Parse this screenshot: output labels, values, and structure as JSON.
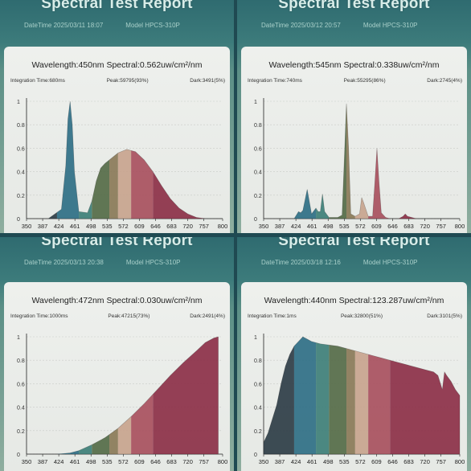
{
  "reports": [
    {
      "title": "Spectral Test Report",
      "datetime": "DateTime 2025/03/11 18:07",
      "model": "Model HPCS-310P",
      "wavelength_line": "Wavelength:450nm Spectral:0.562uw/cm²/nm",
      "integration": "Integration Time:680ms",
      "peak": "Peak:59795(93%)",
      "dark": "Dark:3491(5%)"
    },
    {
      "title": "Spectral Test Report",
      "datetime": "DateTime 2025/03/12 20:57",
      "model": "Model HPCS-310P",
      "wavelength_line": "Wavelength:545nm Spectral:0.338uw/cm²/nm",
      "integration": "Integration Time:740ms",
      "peak": "Peak:55295(86%)",
      "dark": "Dark:2745(4%)"
    },
    {
      "title": "Spectral Test Report",
      "datetime": "DateTime 2025/03/13 20:38",
      "model": "Model HPCS-310P",
      "wavelength_line": "Wavelength:472nm Spectral:0.030uw/cm²/nm",
      "integration": "Integration Time:1000ms",
      "peak": "Peak:47215(73%)",
      "dark": "Dark:2491(4%)"
    },
    {
      "title": "Spectral Test Report",
      "datetime": "DateTime 2025/03/18 12:16",
      "model": "Model HPCS-310P",
      "wavelength_line": "Wavelength:440nm Spectral:123.287uw/cm²/nm",
      "integration": "Integration Time:1ms",
      "peak": "Peak:32800(51%)",
      "dark": "Dark:3101(5%)"
    }
  ],
  "chart_data": [
    {
      "type": "area",
      "x": [
        350,
        400,
        430,
        440,
        445,
        450,
        455,
        460,
        470,
        490,
        500,
        510,
        520,
        530,
        540,
        560,
        580,
        600,
        620,
        640,
        660,
        680,
        700,
        720,
        740,
        760,
        780,
        800
      ],
      "values": [
        0,
        0,
        0.08,
        0.45,
        0.85,
        1.0,
        0.8,
        0.4,
        0.06,
        0.05,
        0.15,
        0.32,
        0.43,
        0.47,
        0.5,
        0.56,
        0.59,
        0.57,
        0.5,
        0.4,
        0.28,
        0.17,
        0.09,
        0.04,
        0.01,
        0,
        0,
        0
      ],
      "xticks": [
        350,
        387,
        424,
        461,
        498,
        535,
        572,
        609,
        646,
        683,
        720,
        757,
        800
      ],
      "yticks": [
        0,
        0.2,
        0.4,
        0.6,
        0.8,
        1
      ],
      "xlim": [
        350,
        800
      ],
      "ylim": [
        0,
        1
      ]
    },
    {
      "type": "area",
      "x": [
        350,
        420,
        425,
        430,
        435,
        440,
        450,
        460,
        470,
        475,
        480,
        485,
        490,
        500,
        520,
        530,
        535,
        540,
        545,
        550,
        560,
        570,
        575,
        580,
        590,
        600,
        605,
        610,
        615,
        620,
        630,
        640,
        660,
        670,
        675,
        680,
        700,
        800
      ],
      "values": [
        0,
        0,
        0.03,
        0.06,
        0.05,
        0.07,
        0.25,
        0.04,
        0.09,
        0.06,
        0.06,
        0.21,
        0.06,
        0.01,
        0.01,
        0.03,
        0.5,
        0.98,
        0.6,
        0.04,
        0.02,
        0.04,
        0.18,
        0.13,
        0.02,
        0.02,
        0.3,
        0.6,
        0.3,
        0.05,
        0.01,
        0.0,
        0.0,
        0.02,
        0.04,
        0.02,
        0.0,
        0
      ],
      "xticks": [
        350,
        387,
        424,
        461,
        498,
        535,
        572,
        609,
        646,
        683,
        720,
        757,
        800
      ],
      "yticks": [
        0,
        0.2,
        0.4,
        0.6,
        0.8,
        1
      ],
      "xlim": [
        350,
        800
      ],
      "ylim": [
        0,
        1
      ]
    },
    {
      "type": "area",
      "x": [
        350,
        420,
        450,
        470,
        500,
        530,
        560,
        590,
        620,
        650,
        680,
        710,
        740,
        760,
        780,
        790
      ],
      "values": [
        0,
        0,
        0.01,
        0.03,
        0.08,
        0.14,
        0.22,
        0.32,
        0.43,
        0.55,
        0.67,
        0.78,
        0.88,
        0.95,
        0.99,
        1.0
      ],
      "xticks": [
        350,
        387,
        424,
        461,
        498,
        535,
        572,
        609,
        646,
        683,
        720,
        757,
        800
      ],
      "yticks": [
        0,
        0.2,
        0.4,
        0.6,
        0.8,
        1
      ],
      "xlim": [
        350,
        800
      ],
      "ylim": [
        0,
        1
      ]
    },
    {
      "type": "area",
      "x": [
        350,
        360,
        370,
        380,
        390,
        400,
        410,
        420,
        430,
        440,
        450,
        460,
        480,
        500,
        520,
        540,
        560,
        580,
        600,
        620,
        640,
        660,
        680,
        700,
        720,
        740,
        750,
        760,
        765,
        770,
        780,
        790,
        800
      ],
      "values": [
        0.1,
        0.18,
        0.3,
        0.42,
        0.6,
        0.75,
        0.85,
        0.92,
        0.96,
        1.0,
        0.98,
        0.96,
        0.94,
        0.93,
        0.92,
        0.9,
        0.88,
        0.86,
        0.84,
        0.82,
        0.8,
        0.78,
        0.76,
        0.74,
        0.72,
        0.7,
        0.67,
        0.55,
        0.7,
        0.67,
        0.62,
        0.55,
        0.5
      ],
      "xticks": [
        350,
        387,
        424,
        461,
        498,
        535,
        572,
        609,
        646,
        683,
        720,
        757,
        800
      ],
      "yticks": [
        0,
        0.2,
        0.4,
        0.6,
        0.8,
        1
      ],
      "xlim": [
        350,
        800
      ],
      "ylim": [
        0,
        1
      ]
    }
  ],
  "spectrum_colors": [
    {
      "from": 350,
      "to": 420,
      "color": "#2e3d46"
    },
    {
      "from": 420,
      "to": 470,
      "color": "#2f6f86"
    },
    {
      "from": 470,
      "to": 500,
      "color": "#3e7f78"
    },
    {
      "from": 500,
      "to": 540,
      "color": "#556b48"
    },
    {
      "from": 540,
      "to": 560,
      "color": "#8a7a58"
    },
    {
      "from": 560,
      "to": 590,
      "color": "#c8a48e"
    },
    {
      "from": 590,
      "to": 640,
      "color": "#a8505e"
    },
    {
      "from": 640,
      "to": 800,
      "color": "#8c3048"
    }
  ]
}
